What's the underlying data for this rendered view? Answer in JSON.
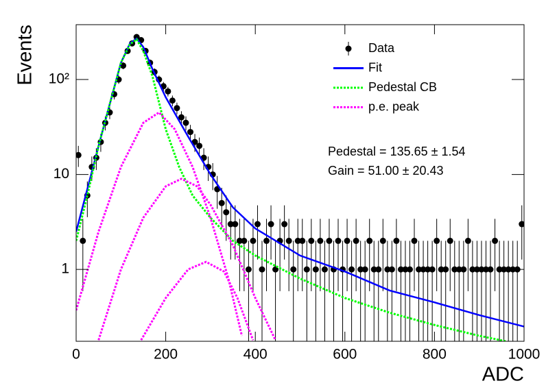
{
  "chart_data": {
    "type": "scatter",
    "x_label": "ADC",
    "y_label": "Events",
    "xlim": [
      0,
      1000
    ],
    "xticks": [
      0,
      200,
      400,
      600,
      800,
      1000
    ],
    "ylim": [
      0.175,
      378
    ],
    "yticks": [
      1,
      10,
      {
        "value": 100,
        "label": "10²"
      }
    ],
    "log_y": true,
    "legend": "top-right",
    "annotations": [
      "Pedestal = 135.65 ± 1.54",
      "Gain = 51.00 ± 20.43"
    ],
    "series": [
      {
        "name": "Data",
        "type": "errorbar",
        "color": "#000000",
        "x": [
          5,
          15,
          25,
          35,
          45,
          55,
          65,
          75,
          85,
          95,
          105,
          115,
          125,
          135,
          145,
          155,
          165,
          175,
          185,
          195,
          205,
          215,
          225,
          235,
          245,
          255,
          265,
          275,
          285,
          295,
          305,
          315,
          325,
          335,
          345,
          355,
          365,
          375,
          385,
          395,
          405,
          415,
          425,
          435,
          445,
          455,
          465,
          475,
          485,
          495,
          505,
          515,
          525,
          535,
          545,
          555,
          565,
          575,
          585,
          595,
          605,
          615,
          625,
          635,
          645,
          655,
          665,
          675,
          685,
          695,
          705,
          715,
          725,
          735,
          745,
          755,
          765,
          775,
          785,
          795,
          805,
          815,
          825,
          835,
          845,
          855,
          865,
          875,
          885,
          895,
          905,
          915,
          925,
          935,
          945,
          955,
          965,
          975,
          985,
          995
        ],
        "values": [
          16,
          2,
          6,
          12,
          15,
          22,
          35,
          45,
          70,
          100,
          140,
          200,
          240,
          280,
          260,
          200,
          150,
          120,
          100,
          85,
          75,
          60,
          50,
          40,
          35,
          28,
          22,
          20,
          15,
          12,
          10,
          7,
          5,
          4,
          3,
          3,
          2,
          2,
          1,
          2,
          3,
          1,
          2,
          3,
          1,
          2,
          3,
          2,
          1,
          2,
          2,
          1,
          2,
          1,
          2,
          1,
          2,
          1,
          2,
          1,
          2,
          1,
          2,
          1,
          1,
          2,
          1,
          1,
          2,
          1,
          1,
          2,
          1,
          1,
          1,
          2,
          1,
          1,
          1,
          1,
          2,
          1,
          1,
          2,
          1,
          1,
          1,
          2,
          1,
          1,
          1,
          1,
          1,
          2,
          1,
          1,
          1,
          1,
          1,
          3
        ],
        "errors": [
          4,
          1.41,
          2.45,
          3.46,
          3.87,
          4.69,
          5.92,
          6.71,
          8.37,
          10,
          11.83,
          14.14,
          15.49,
          16.73,
          16.12,
          14.14,
          12.25,
          10.95,
          10,
          9.22,
          8.66,
          7.75,
          7.07,
          6.32,
          5.92,
          5.29,
          4.69,
          4.47,
          3.87,
          3.46,
          3.16,
          2.65,
          2.24,
          2,
          1.73,
          1.73,
          1.41,
          1.41,
          1,
          1.41,
          1.73,
          1,
          1.41,
          1.73,
          1,
          1.41,
          1.73,
          1.41,
          1,
          1.41,
          1.41,
          1,
          1.41,
          1,
          1.41,
          1,
          1.41,
          1,
          1.41,
          1,
          1.41,
          1,
          1.41,
          1,
          1,
          1.41,
          1,
          1,
          1.41,
          1,
          1,
          1.41,
          1,
          1,
          1,
          1.41,
          1,
          1,
          1,
          1,
          1.41,
          1,
          1,
          1.41,
          1,
          1,
          1,
          1.41,
          1,
          1,
          1,
          1,
          1,
          1.41,
          1,
          1,
          1,
          1,
          1,
          1.73
        ]
      },
      {
        "name": "Fit",
        "type": "line",
        "color": "#0000ff",
        "dash": "solid",
        "x": [
          0,
          25,
          50,
          75,
          100,
          120,
          135,
          150,
          170,
          200,
          250,
          300,
          350,
          400,
          500,
          600,
          700,
          800,
          900,
          1000
        ],
        "values": [
          2.5,
          7,
          20,
          55,
          150,
          240,
          270,
          220,
          130,
          65,
          25,
          10,
          4.5,
          2.7,
          1.4,
          0.95,
          0.6,
          0.45,
          0.33,
          0.25
        ]
      },
      {
        "name": "Pedestal CB",
        "type": "line",
        "color": "#00ff00",
        "dash": "dotted",
        "x": [
          0,
          25,
          50,
          75,
          100,
          120,
          135,
          150,
          170,
          200,
          230,
          260,
          300,
          350,
          400,
          500,
          600,
          700,
          800,
          900,
          960
        ],
        "values": [
          2,
          6,
          20,
          55,
          150,
          235,
          265,
          200,
          110,
          30,
          12,
          6,
          3.5,
          2,
          1.4,
          0.8,
          0.5,
          0.35,
          0.26,
          0.2,
          0.175
        ]
      },
      {
        "name": "p.e. peak",
        "type": "line",
        "color": "#ff00ff",
        "dash": "dotted",
        "x": [
          0,
          50,
          100,
          150,
          185,
          220,
          260,
          300,
          340,
          370
        ],
        "values": [
          0.37,
          2.5,
          12,
          35,
          45,
          30,
          12,
          3.5,
          0.8,
          0.2
        ]
      },
      {
        "type": "line",
        "color": "#ff00ff",
        "dash": "dotted",
        "x": [
          50,
          100,
          150,
          200,
          235,
          270,
          300,
          350,
          400,
          445
        ],
        "values": [
          0.18,
          1,
          3.5,
          7.5,
          9,
          7.5,
          4.8,
          1.8,
          0.5,
          0.18
        ]
      },
      {
        "type": "line",
        "color": "#ff00ff",
        "dash": "dotted",
        "x": [
          145,
          200,
          250,
          290,
          330,
          360,
          395
        ],
        "values": [
          0.18,
          0.5,
          1,
          1.2,
          0.95,
          0.5,
          0.18
        ]
      }
    ]
  }
}
